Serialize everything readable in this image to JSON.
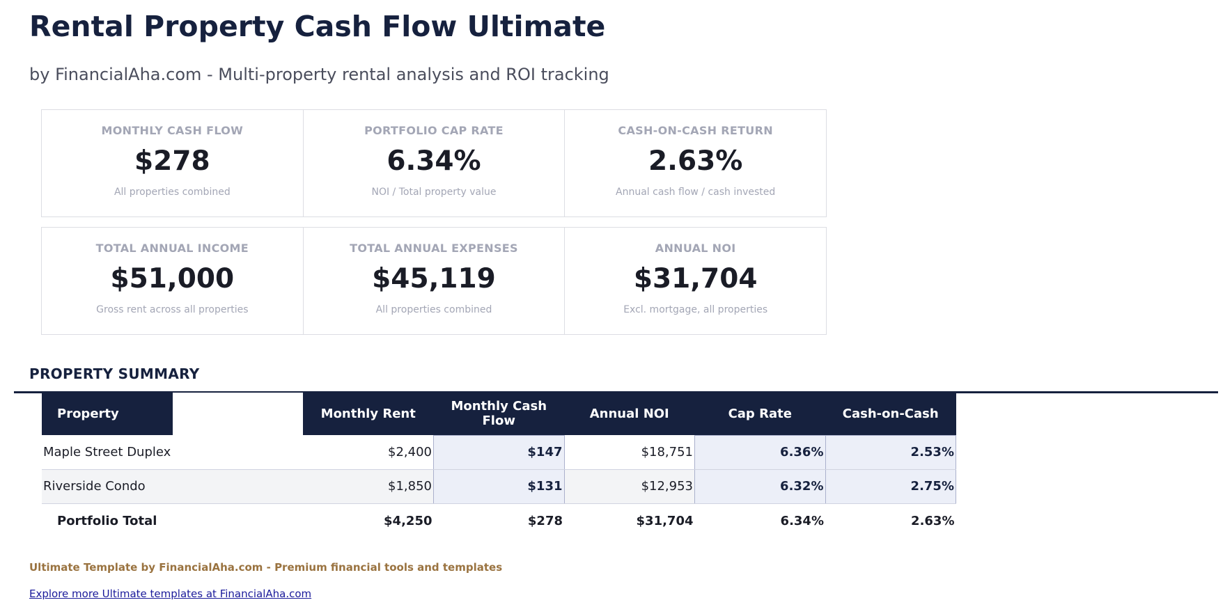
{
  "header": {
    "title": "Rental Property Cash Flow Ultimate",
    "subtitle": "by FinancialAha.com - Multi-property rental analysis and ROI tracking"
  },
  "kpis": [
    {
      "label": "MONTHLY CASH FLOW",
      "value": "$278",
      "note": "All properties combined"
    },
    {
      "label": "PORTFOLIO CAP RATE",
      "value": "6.34%",
      "note": "NOI / Total property value"
    },
    {
      "label": "CASH-ON-CASH RETURN",
      "value": "2.63%",
      "note": "Annual cash flow / cash invested"
    },
    {
      "label": "TOTAL ANNUAL INCOME",
      "value": "$51,000",
      "note": "Gross rent across all properties"
    },
    {
      "label": "TOTAL ANNUAL EXPENSES",
      "value": "$45,119",
      "note": "All properties combined"
    },
    {
      "label": "ANNUAL NOI",
      "value": "$31,704",
      "note": "Excl. mortgage, all properties"
    }
  ],
  "summary": {
    "title": "PROPERTY SUMMARY",
    "columns": [
      "Property",
      "",
      "Monthly Rent",
      "Monthly Cash Flow",
      "Annual NOI",
      "Cap Rate",
      "Cash-on-Cash"
    ],
    "rows": [
      [
        "Maple Street Duplex",
        "",
        "$2,400",
        "$147",
        "$18,751",
        "6.36%",
        "2.53%"
      ],
      [
        "Riverside Condo",
        "",
        "$1,850",
        "$131",
        "$12,953",
        "6.32%",
        "2.75%"
      ]
    ],
    "total": [
      "Portfolio Total",
      "",
      "$4,250",
      "$278",
      "$31,704",
      "6.34%",
      "2.63%"
    ]
  },
  "footer": {
    "text": "Ultimate Template by FinancialAha.com - Premium financial tools and templates",
    "link": "Explore more Ultimate templates at FinancialAha.com"
  }
}
